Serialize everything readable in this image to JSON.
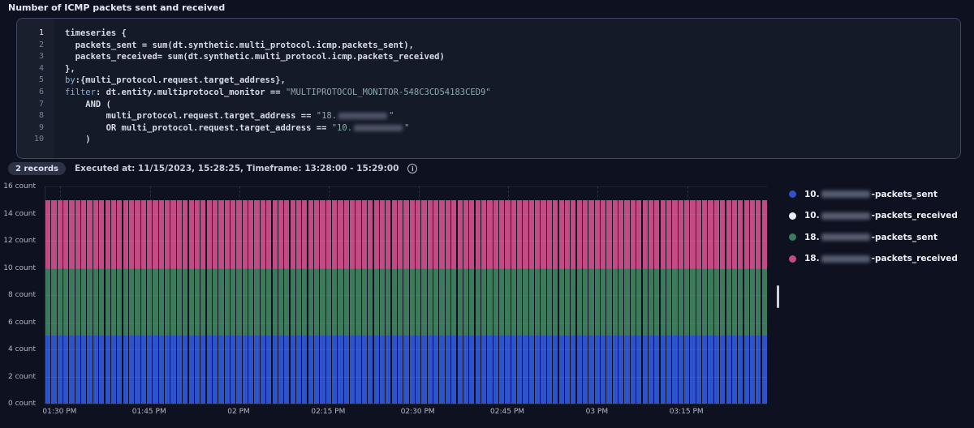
{
  "title": "Number of ICMP packets sent and received",
  "editor": {
    "lines": [
      {
        "n": "1",
        "active": true,
        "tokens": [
          {
            "t": "timeseries {",
            "c": "d"
          }
        ]
      },
      {
        "n": "2",
        "tokens": [
          {
            "t": "  packets_sent = sum(dt.synthetic.multi_protocol.icmp.packets_sent),",
            "c": "d"
          }
        ]
      },
      {
        "n": "3",
        "tokens": [
          {
            "t": "  packets_received= sum(dt.synthetic.multi_protocol.icmp.packets_received)",
            "c": "d"
          }
        ]
      },
      {
        "n": "4",
        "tokens": [
          {
            "t": "},",
            "c": "d"
          }
        ]
      },
      {
        "n": "5",
        "tokens": [
          {
            "t": "by",
            "c": "k"
          },
          {
            "t": ":{multi_protocol.request.target_address},",
            "c": "d"
          }
        ]
      },
      {
        "n": "6",
        "tokens": [
          {
            "t": "filter",
            "c": "k"
          },
          {
            "t": ": dt.entity.multiprotocol_monitor == ",
            "c": "d"
          },
          {
            "t": "\"MULTIPROTOCOL_MONITOR-548C3CD54183CED9\"",
            "c": "s"
          }
        ]
      },
      {
        "n": "7",
        "tokens": [
          {
            "t": "    AND (",
            "c": "d"
          }
        ]
      },
      {
        "n": "8",
        "tokens": [
          {
            "t": "        multi_protocol.request.target_address == ",
            "c": "d"
          },
          {
            "t": "\"18.",
            "c": "s"
          },
          {
            "t": "",
            "c": "r"
          },
          {
            "t": "\"",
            "c": "s"
          }
        ]
      },
      {
        "n": "9",
        "tokens": [
          {
            "t": "        OR multi_protocol.request.target_address == ",
            "c": "d"
          },
          {
            "t": "\"10.",
            "c": "s"
          },
          {
            "t": "",
            "c": "r"
          },
          {
            "t": "\"",
            "c": "s"
          }
        ]
      },
      {
        "n": "10",
        "tokens": [
          {
            "t": "    )",
            "c": "d"
          }
        ]
      }
    ]
  },
  "results_bar": {
    "records_badge": "2 records",
    "status_text": "Executed at: 11/15/2023, 15:28:25, Timeframe: 13:28:00 - 15:29:00",
    "info_icon_glyph": "i"
  },
  "chart_data": {
    "type": "bar",
    "stacked": true,
    "grid": true,
    "legend_position": "right",
    "ylim": [
      0,
      16
    ],
    "y_ticks_top_to_bottom": [
      16,
      14,
      12,
      10,
      8,
      6,
      4,
      2,
      0
    ],
    "y_tick_labels_top_to_bottom": [
      "16 count",
      "14 count",
      "12 count",
      "10 count",
      "8 count",
      "6 count",
      "4 count",
      "2 count",
      "0 count"
    ],
    "x_tick_labels": [
      "01:30 PM",
      "01:45 PM",
      "02 PM",
      "02:15 PM",
      "02:30 PM",
      "02:45 PM",
      "03 PM",
      "03:15 PM"
    ],
    "timeframe_start": "13:28:00",
    "timeframe_end": "15:29:00",
    "bucket_minutes": 1,
    "bucket_count": 121,
    "first_tick_offset_minutes": 2,
    "tick_interval_minutes": 15,
    "stack_total_per_bucket": 15,
    "series": [
      {
        "name_prefix": "10.",
        "ip_redacted": true,
        "name_suffix": "-packets_sent",
        "color": "#2e52c9",
        "value_per_bucket": 5
      },
      {
        "name_prefix": "10.",
        "ip_redacted": true,
        "name_suffix": "-packets_received",
        "color": "#eceef4",
        "value_per_bucket": 0
      },
      {
        "name_prefix": "18.",
        "ip_redacted": true,
        "name_suffix": "-packets_sent",
        "color": "#3d7a5b",
        "value_per_bucket": 5
      },
      {
        "name_prefix": "18.",
        "ip_redacted": true,
        "name_suffix": "-packets_received",
        "color": "#c14b82",
        "value_per_bucket": 5
      }
    ]
  },
  "colors": {
    "page_bg": "#0d1120",
    "panel_bg": "#161b29",
    "panel_border": "#404760",
    "gridline": "#272d45",
    "axis_text": "#b3b8c6",
    "blue_series": "#2e52c9",
    "white_series": "#eceef4",
    "green_series": "#3d7a5b",
    "pink_series": "#c14b82"
  }
}
